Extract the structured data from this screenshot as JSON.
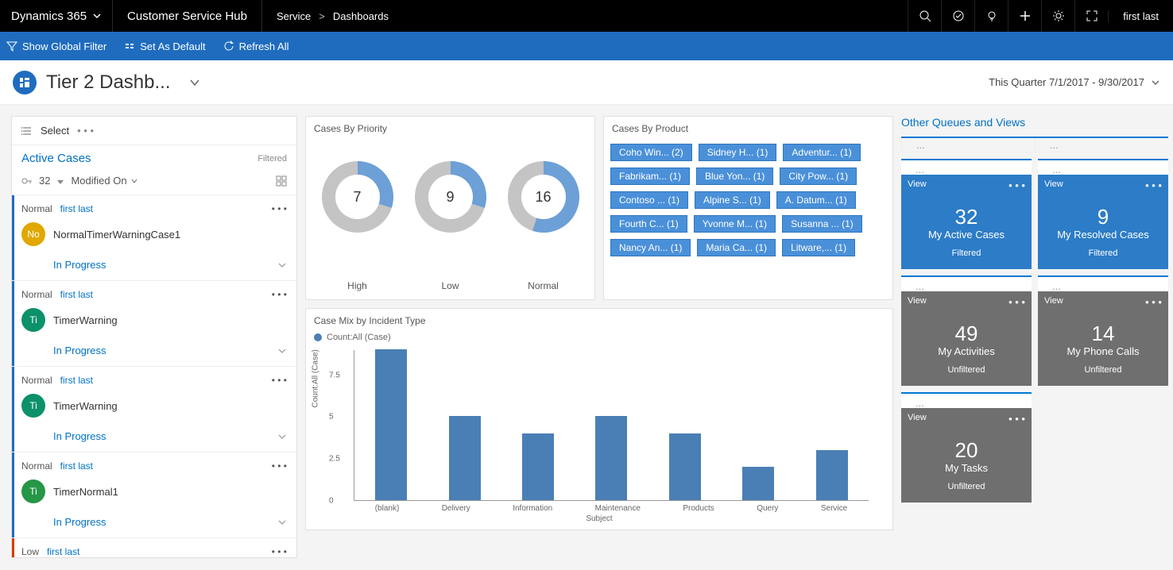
{
  "topbar": {
    "brand": "Dynamics 365",
    "hub": "Customer Service Hub",
    "crumb1": "Service",
    "crumb2": "Dashboards",
    "user": "first last"
  },
  "cmdbar": {
    "filter": "Show Global Filter",
    "setdefault": "Set As Default",
    "refresh": "Refresh All"
  },
  "pagehdr": {
    "title": "Tier 2 Dashb...",
    "quarter": "This Quarter 7/1/2017 - 9/30/2017"
  },
  "left": {
    "select": "Select",
    "activeCases": "Active Cases",
    "filtered": "Filtered",
    "count": "32",
    "sort": "Modified On",
    "cards": [
      {
        "prio": "Normal",
        "owner": "first last",
        "avatar": "No",
        "avclass": "",
        "title": "NormalTimerWarningCase1",
        "status": "In Progress",
        "bar": "bluebar"
      },
      {
        "prio": "Normal",
        "owner": "first last",
        "avatar": "Ti",
        "avclass": "teal",
        "title": "TimerWarning",
        "status": "In Progress",
        "bar": "bluebar"
      },
      {
        "prio": "Normal",
        "owner": "first last",
        "avatar": "Ti",
        "avclass": "teal",
        "title": "TimerWarning",
        "status": "In Progress",
        "bar": "bluebar"
      },
      {
        "prio": "Normal",
        "owner": "first last",
        "avatar": "Ti",
        "avclass": "green",
        "title": "TimerNormal1",
        "status": "In Progress",
        "bar": "bluebar"
      },
      {
        "prio": "Low",
        "owner": "first last",
        "avatar": "",
        "avclass": "",
        "title": "",
        "status": "",
        "bar": "redbar"
      }
    ]
  },
  "mid": {
    "priority": {
      "title": "Cases By Priority",
      "donuts": [
        {
          "label": "High",
          "value": 7,
          "pct": 0.3
        },
        {
          "label": "Low",
          "value": 9,
          "pct": 0.3
        },
        {
          "label": "Normal",
          "value": 16,
          "pct": 0.55
        }
      ],
      "donut_fill": "#6ca0d6",
      "donut_track": "#c4c4c4",
      "donut_inner": "#ffffff"
    },
    "product": {
      "title": "Cases By Product",
      "chips": [
        "Coho Win... (2)",
        "Sidney H... (1)",
        "Adventur... (1)",
        "Fabrikam... (1)",
        "Blue Yon... (1)",
        "City Pow... (1)",
        "Contoso ... (1)",
        "Alpine S... (1)",
        "A. Datum... (1)",
        "Fourth C... (1)",
        "Yvonne M... (1)",
        "Susanna ... (1)",
        "Nancy An... (1)",
        "Maria Ca... (1)",
        "Litware,... (1)"
      ],
      "chip_bg": "#4a90d9",
      "chip_border": "#3076bd"
    },
    "bars": {
      "title": "Case Mix by Incident Type",
      "legend": "Count:All (Case)",
      "ylabel": "Count:All (Case)",
      "xlabel": "Subject",
      "ylim": [
        0,
        9
      ],
      "yticks": [
        0,
        2.5,
        5,
        7.5
      ],
      "categories": [
        "(blank)",
        "Delivery",
        "Information",
        "Maintenance",
        "Products",
        "Query",
        "Service"
      ],
      "values": [
        9,
        5,
        4,
        5,
        4,
        2,
        3
      ],
      "bar_color": "#4a7fb5"
    }
  },
  "right": {
    "title": "Other Queues and Views",
    "ellipsis": "...",
    "view": "View",
    "tiles": [
      {
        "n": "32",
        "label": "My Active Cases",
        "sub": "Filtered",
        "cls": "blue"
      },
      {
        "n": "9",
        "label": "My Resolved Cases",
        "sub": "Filtered",
        "cls": "blue"
      },
      {
        "n": "49",
        "label": "My Activities",
        "sub": "Unfiltered",
        "cls": "gray"
      },
      {
        "n": "14",
        "label": "My Phone Calls",
        "sub": "Unfiltered",
        "cls": "gray"
      },
      {
        "n": "20",
        "label": "My Tasks",
        "sub": "Unfiltered",
        "cls": "gray"
      }
    ]
  }
}
